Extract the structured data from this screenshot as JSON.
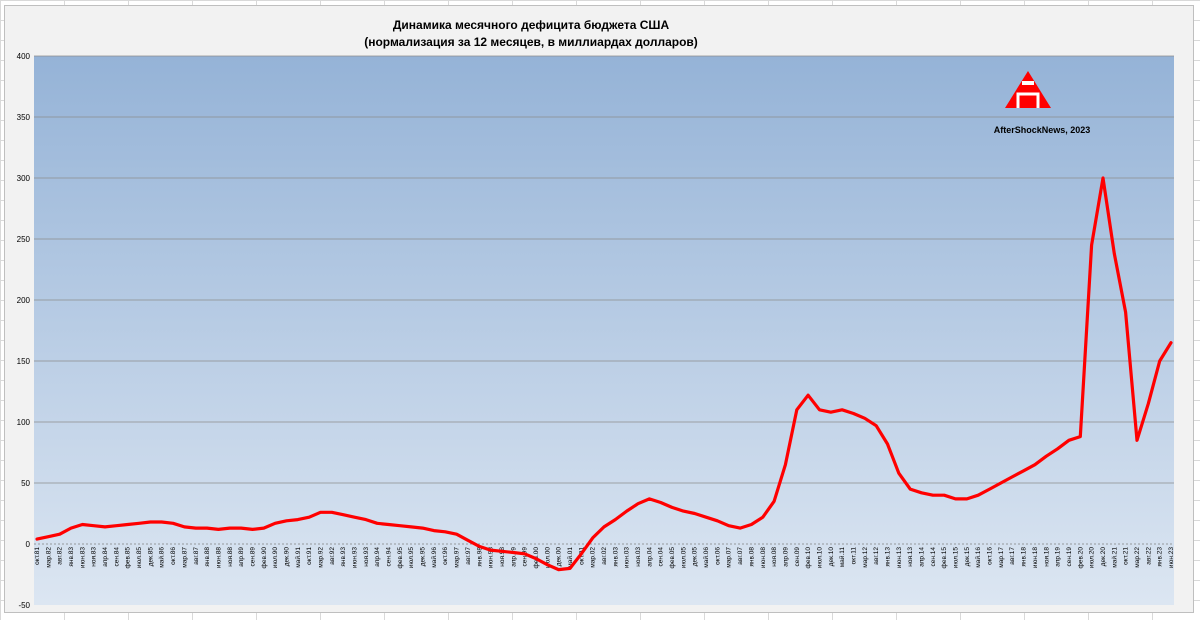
{
  "chart_data": {
    "type": "line",
    "title": "Динамика месячного дефицита бюджета США",
    "subtitle": "(нормализация за 12 месяцев, в миллиардах долларов)",
    "watermark": "AfterShockNews, 2023",
    "ylim": [
      -50,
      400
    ],
    "yticks": [
      "-50",
      "0",
      "50",
      "100",
      "150",
      "200",
      "250",
      "300",
      "350",
      "400"
    ],
    "grid": true,
    "legend": "none",
    "line_color": "#ff0000",
    "plot_background": "gradient #95b3d7 to #dce6f2",
    "x_tick_labels": [
      "окт.81",
      "мар.82",
      "авг.82",
      "янв.83",
      "июн.83",
      "ноя.83",
      "апр.84",
      "сен.84",
      "фев.85",
      "июл.85",
      "дек.85",
      "май.86",
      "окт.86",
      "мар.87",
      "авг.87",
      "янв.88",
      "июн.88",
      "ноя.88",
      "апр.89",
      "сен.89",
      "фев.90",
      "июл.90",
      "дек.90",
      "май.91",
      "окт.91",
      "мар.92",
      "авг.92",
      "янв.93",
      "июн.93",
      "ноя.93",
      "апр.94",
      "сен.94",
      "фев.95",
      "июл.95",
      "дек.95",
      "май.96",
      "окт.96",
      "мар.97",
      "авг.97",
      "янв.98",
      "июн.98",
      "ноя.98",
      "апр.99",
      "сен.99",
      "фев.00",
      "июл.00",
      "дек.00",
      "май.01",
      "окт.01",
      "мар.02",
      "авг.02",
      "янв.03",
      "июн.03",
      "ноя.03",
      "апр.04",
      "сен.04",
      "фев.05",
      "июл.05",
      "дек.05",
      "май.06",
      "окт.06",
      "мар.07",
      "авг.07",
      "янв.08",
      "июн.08",
      "ноя.08",
      "апр.09",
      "сен.09",
      "фев.10",
      "июл.10",
      "дек.10",
      "май.11",
      "окт.11",
      "мар.12",
      "авг.12",
      "янв.13",
      "июн.13",
      "ноя.13",
      "апр.14",
      "сен.14",
      "фев.15",
      "июл.15",
      "дек.15",
      "май.16",
      "окт.16",
      "мар.17",
      "авг.17",
      "янв.18",
      "июн.18",
      "ноя.18",
      "апр.19",
      "сен.19",
      "фев.20",
      "июл.20",
      "дек.20",
      "май.21",
      "окт.21",
      "мар.22",
      "авг.22",
      "янв.23",
      "июн.23"
    ],
    "series": [
      {
        "points": [
          [
            "окт.81",
            4
          ],
          [
            "мар.82",
            6
          ],
          [
            "авг.82",
            8
          ],
          [
            "янв.83",
            13
          ],
          [
            "июн.83",
            16
          ],
          [
            "ноя.83",
            15
          ],
          [
            "апр.84",
            14
          ],
          [
            "сен.84",
            15
          ],
          [
            "фев.85",
            16
          ],
          [
            "июл.85",
            17
          ],
          [
            "дек.85",
            18
          ],
          [
            "май.86",
            18
          ],
          [
            "окт.86",
            17
          ],
          [
            "мар.87",
            14
          ],
          [
            "авг.87",
            13
          ],
          [
            "янв.88",
            13
          ],
          [
            "июн.88",
            12
          ],
          [
            "ноя.88",
            13
          ],
          [
            "апр.89",
            13
          ],
          [
            "сен.89",
            12
          ],
          [
            "фев.90",
            13
          ],
          [
            "июл.90",
            17
          ],
          [
            "дек.90",
            19
          ],
          [
            "май.91",
            20
          ],
          [
            "окт.91",
            22
          ],
          [
            "мар.92",
            26
          ],
          [
            "авг.92",
            26
          ],
          [
            "янв.93",
            24
          ],
          [
            "июн.93",
            22
          ],
          [
            "ноя.93",
            20
          ],
          [
            "апр.94",
            17
          ],
          [
            "сен.94",
            16
          ],
          [
            "фев.95",
            15
          ],
          [
            "июл.95",
            14
          ],
          [
            "дек.95",
            13
          ],
          [
            "май.96",
            11
          ],
          [
            "окт.96",
            10
          ],
          [
            "мар.97",
            8
          ],
          [
            "авг.97",
            3
          ],
          [
            "янв.98",
            -2
          ],
          [
            "июн.98",
            -5
          ],
          [
            "ноя.98",
            -6
          ],
          [
            "апр.99",
            -7
          ],
          [
            "сен.99",
            -8
          ],
          [
            "фев.00",
            -12
          ],
          [
            "июл.00",
            -17
          ],
          [
            "дек.00",
            -21
          ],
          [
            "май.01",
            -20
          ],
          [
            "окт.01",
            -8
          ],
          [
            "мар.02",
            5
          ],
          [
            "авг.02",
            14
          ],
          [
            "янв.03",
            20
          ],
          [
            "июн.03",
            27
          ],
          [
            "ноя.03",
            33
          ],
          [
            "апр.04",
            37
          ],
          [
            "сен.04",
            34
          ],
          [
            "фев.05",
            30
          ],
          [
            "июл.05",
            27
          ],
          [
            "дек.05",
            25
          ],
          [
            "май.06",
            22
          ],
          [
            "окт.06",
            19
          ],
          [
            "мар.07",
            15
          ],
          [
            "авг.07",
            13
          ],
          [
            "янв.08",
            16
          ],
          [
            "июн.08",
            22
          ],
          [
            "ноя.08",
            35
          ],
          [
            "апр.09",
            65
          ],
          [
            "сен.09",
            110
          ],
          [
            "фев.10",
            122
          ],
          [
            "июл.10",
            110
          ],
          [
            "дек.10",
            108
          ],
          [
            "май.11",
            110
          ],
          [
            "окт.11",
            107
          ],
          [
            "мар.12",
            103
          ],
          [
            "авг.12",
            97
          ],
          [
            "янв.13",
            82
          ],
          [
            "июн.13",
            58
          ],
          [
            "ноя.13",
            45
          ],
          [
            "апр.14",
            42
          ],
          [
            "сен.14",
            40
          ],
          [
            "фев.15",
            40
          ],
          [
            "июл.15",
            37
          ],
          [
            "дек.15",
            37
          ],
          [
            "май.16",
            40
          ],
          [
            "окт.16",
            45
          ],
          [
            "мар.17",
            50
          ],
          [
            "авг.17",
            55
          ],
          [
            "янв.18",
            60
          ],
          [
            "июн.18",
            65
          ],
          [
            "ноя.18",
            72
          ],
          [
            "апр.19",
            78
          ],
          [
            "сен.19",
            85
          ],
          [
            "фев.20",
            88
          ],
          [
            "июл.20",
            245
          ],
          [
            "дек.20",
            300
          ],
          [
            "май.21",
            238
          ],
          [
            "окт.21",
            190
          ],
          [
            "мар.22",
            85
          ],
          [
            "авг.22",
            115
          ],
          [
            "янв.23",
            150
          ],
          [
            "июн.23",
            165
          ]
        ]
      }
    ]
  }
}
